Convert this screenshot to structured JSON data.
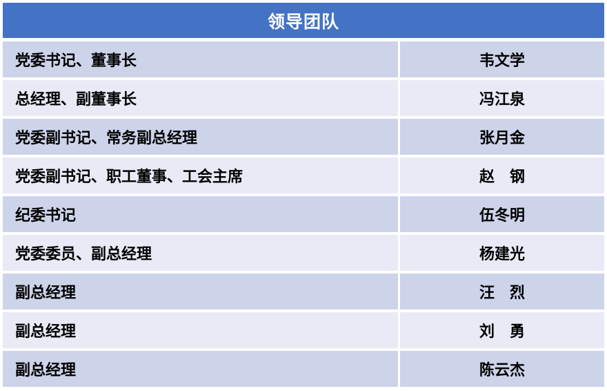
{
  "header": {
    "title": "领导团队"
  },
  "colors": {
    "header_bg": "#4472C4",
    "header_text": "#FFFFFF",
    "row_odd_bg": "#CDD3E9",
    "row_even_bg": "#E8EAF6",
    "cell_text": "#000000",
    "divider": "#FFFFFF"
  },
  "table": {
    "columns": [
      "position",
      "name"
    ],
    "rows": [
      {
        "position": "党委书记、董事长",
        "name": "韦文学"
      },
      {
        "position": "总经理、副董事长",
        "name": "冯江泉"
      },
      {
        "position": "党委副书记、常务副总经理",
        "name": "张月金"
      },
      {
        "position": "党委副书记、职工董事、工会主席",
        "name": "赵　钢"
      },
      {
        "position": "纪委书记",
        "name": "伍冬明"
      },
      {
        "position": "党委委员、副总经理",
        "name": "杨建光"
      },
      {
        "position": "副总经理",
        "name": "汪　烈"
      },
      {
        "position": "副总经理",
        "name": "刘　勇"
      },
      {
        "position": "副总经理",
        "name": "陈云杰"
      }
    ]
  }
}
